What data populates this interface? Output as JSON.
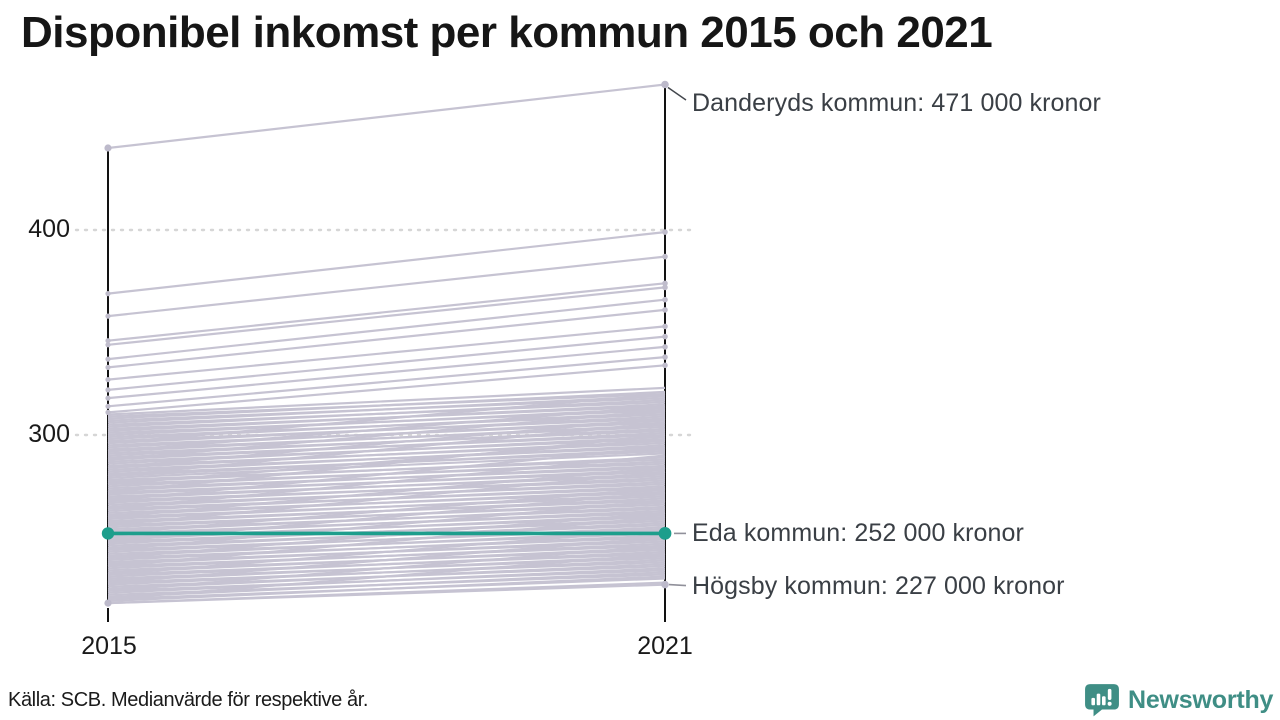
{
  "title": "Disponibel inkomst per kommun 2015 och 2021",
  "footer": {
    "source": "Källa: SCB. Medianvärde för respektive år.",
    "brand": "Newsworthy"
  },
  "colors": {
    "highlight_teal": "#1d9e8c",
    "line_gray": "#c6c3d2",
    "axis_black": "#121212",
    "grid_gray": "#d6d6d6",
    "annotation_text": "#3a3f45",
    "brand_teal": "#3f8e85"
  },
  "chart_data": {
    "type": "line",
    "subtype": "slope-chart",
    "title": "Disponibel inkomst per kommun 2015 och 2021",
    "x_categories": [
      "2015",
      "2021"
    ],
    "y_axis": {
      "ticks": [
        {
          "value": 400,
          "label": "400"
        },
        {
          "value": 300,
          "label": "300"
        }
      ],
      "grid": "dotted-horizontal",
      "approx_range": [
        210,
        480
      ]
    },
    "annotations": [
      {
        "series": "Danderyds kommun",
        "text": "Danderyds kommun: 471 000 kronor",
        "year": "2021",
        "value": 471
      },
      {
        "series": "Eda kommun",
        "text": "Eda kommun: 252 000 kronor",
        "year": "2021",
        "value": 252
      },
      {
        "series": "Högsby kommun",
        "text": "Högsby kommun: 227 000 kronor",
        "year": "2021",
        "value": 227
      }
    ],
    "highlight_series": {
      "name": "Eda kommun",
      "values": [
        252,
        252
      ]
    },
    "labeled_series": [
      {
        "name": "Danderyds kommun",
        "values": [
          440,
          471
        ]
      },
      {
        "name": "Högsby kommun",
        "values": [
          218,
          227
        ]
      }
    ],
    "outlier_lines": [
      [
        369,
        399
      ],
      [
        358,
        387
      ],
      [
        346,
        374
      ],
      [
        344,
        372
      ],
      [
        337,
        366
      ],
      [
        333,
        361
      ],
      [
        327,
        353
      ],
      [
        322,
        348
      ],
      [
        318,
        343
      ],
      [
        314,
        338
      ],
      [
        311,
        334
      ]
    ],
    "background_lines": [
      [
        218,
        228
      ],
      [
        219,
        231
      ],
      [
        220,
        230
      ],
      [
        221,
        233
      ],
      [
        222,
        232
      ],
      [
        223,
        235
      ],
      [
        224,
        234
      ],
      [
        225,
        237
      ],
      [
        226,
        236
      ],
      [
        227,
        239
      ],
      [
        228,
        238
      ],
      [
        229,
        241
      ],
      [
        230,
        240
      ],
      [
        231,
        243
      ],
      [
        232,
        242
      ],
      [
        233,
        245
      ],
      [
        234,
        244
      ],
      [
        235,
        247
      ],
      [
        236,
        246
      ],
      [
        237,
        249
      ],
      [
        238,
        248
      ],
      [
        239,
        251
      ],
      [
        240,
        250
      ],
      [
        241,
        253
      ],
      [
        242,
        252
      ],
      [
        243,
        255
      ],
      [
        244,
        254
      ],
      [
        245,
        257
      ],
      [
        246,
        256
      ],
      [
        247,
        259
      ],
      [
        248,
        258
      ],
      [
        249,
        261
      ],
      [
        250,
        260
      ],
      [
        251,
        263
      ],
      [
        252,
        262
      ],
      [
        253,
        265
      ],
      [
        254,
        264
      ],
      [
        255,
        267
      ],
      [
        256,
        266
      ],
      [
        257,
        269
      ],
      [
        258,
        268
      ],
      [
        259,
        271
      ],
      [
        260,
        270
      ],
      [
        261,
        273
      ],
      [
        262,
        272
      ],
      [
        263,
        275
      ],
      [
        264,
        274
      ],
      [
        265,
        277
      ],
      [
        266,
        276
      ],
      [
        267,
        279
      ],
      [
        268,
        278
      ],
      [
        269,
        281
      ],
      [
        270,
        280
      ],
      [
        271,
        283
      ],
      [
        272,
        282
      ],
      [
        273,
        285
      ],
      [
        274,
        284
      ],
      [
        275,
        287
      ],
      [
        276,
        286
      ],
      [
        277,
        289
      ],
      [
        278,
        288
      ],
      [
        279,
        291
      ],
      [
        280,
        293
      ],
      [
        281,
        292
      ],
      [
        282,
        295
      ],
      [
        283,
        294
      ],
      [
        284,
        297
      ],
      [
        285,
        296
      ],
      [
        286,
        299
      ],
      [
        287,
        298
      ],
      [
        288,
        301
      ],
      [
        289,
        300
      ],
      [
        290,
        303
      ],
      [
        291,
        302
      ],
      [
        292,
        305
      ],
      [
        293,
        304
      ],
      [
        294,
        307
      ],
      [
        295,
        306
      ],
      [
        296,
        309
      ],
      [
        297,
        308
      ],
      [
        298,
        311
      ],
      [
        299,
        310
      ],
      [
        300,
        313
      ],
      [
        301,
        312
      ],
      [
        302,
        315
      ],
      [
        303,
        314
      ],
      [
        304,
        317
      ],
      [
        305,
        316
      ],
      [
        306,
        319
      ],
      [
        307,
        318
      ],
      [
        308,
        321
      ],
      [
        309,
        320
      ],
      [
        310,
        323
      ],
      [
        224,
        246
      ],
      [
        232,
        254
      ],
      [
        240,
        262
      ],
      [
        248,
        272
      ],
      [
        256,
        282
      ],
      [
        264,
        290
      ],
      [
        272,
        300
      ],
      [
        280,
        306
      ],
      [
        288,
        312
      ],
      [
        296,
        320
      ],
      [
        220,
        242
      ],
      [
        236,
        260
      ],
      [
        252,
        274
      ],
      [
        268,
        294
      ],
      [
        284,
        308
      ],
      [
        228,
        250
      ],
      [
        244,
        268
      ],
      [
        260,
        284
      ],
      [
        276,
        298
      ],
      [
        292,
        314
      ]
    ]
  }
}
